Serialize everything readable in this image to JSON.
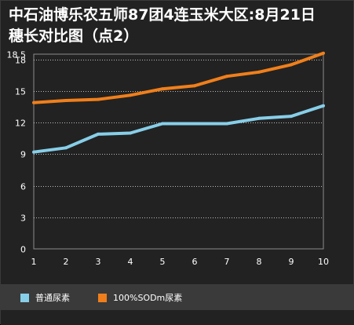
{
  "title": "中石油博乐农五师87团4连玉米大区:8月21日\n穗长对比图（点2）",
  "colors": {
    "background": "#222222",
    "axis": "#8c8c8c",
    "grid": "#bdbdbd",
    "text": "#ffffff",
    "series_blue": "#87cee8",
    "series_orange": "#f07f1b"
  },
  "chart_data": {
    "type": "line",
    "title": "中石油博乐农五师87团4连玉米大区:8月21日 穗长对比图（点2）",
    "xlabel": "",
    "ylabel": "",
    "x": [
      1,
      2,
      3,
      4,
      5,
      6,
      7,
      8,
      9,
      10
    ],
    "xlim": [
      1,
      10
    ],
    "ylim": [
      0,
      18.5
    ],
    "yticks": [
      0,
      3,
      6,
      9,
      12,
      15,
      18,
      18.5
    ],
    "ytick_labels": [
      "0",
      "3",
      "6",
      "9",
      "12",
      "15",
      "18",
      "18.5"
    ],
    "xtick_labels": [
      "1",
      "2",
      "3",
      "4",
      "5",
      "6",
      "7",
      "8",
      "9",
      "10"
    ],
    "grid": "horizontal dotted",
    "legend_position": "bottom-left",
    "series": [
      {
        "name": "普通尿素",
        "color": "#87cee8",
        "values": [
          9.2,
          9.6,
          10.9,
          11.0,
          11.9,
          11.9,
          11.9,
          12.4,
          12.6,
          13.6
        ]
      },
      {
        "name": "100%SODm尿素",
        "color": "#f07f1b",
        "values": [
          13.9,
          14.1,
          14.2,
          14.6,
          15.2,
          15.5,
          16.4,
          16.8,
          17.5,
          18.6
        ]
      }
    ]
  }
}
